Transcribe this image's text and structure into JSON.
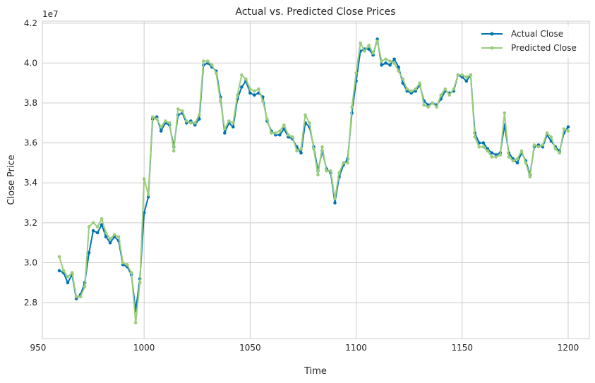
{
  "chart_data": {
    "type": "line",
    "title": "Actual vs. Predicted Close Prices",
    "xlabel": "Time",
    "ylabel": "Close Price",
    "y_offset_label": "1e7",
    "xlim": [
      952,
      1210
    ],
    "ylim": [
      26200000,
      42100000
    ],
    "x_ticks": [
      950,
      1000,
      1050,
      1100,
      1150,
      1200
    ],
    "y_ticks": [
      28000000,
      30000000,
      32000000,
      34000000,
      36000000,
      38000000,
      40000000,
      42000000
    ],
    "x_tick_labels": [
      "950",
      "1000",
      "1050",
      "1100",
      "1150",
      "1200"
    ],
    "y_tick_labels": [
      "2.8",
      "3.0",
      "3.2",
      "3.4",
      "3.6",
      "3.8",
      "4.0",
      "4.2"
    ],
    "grid": true,
    "legend_position": "top-right",
    "series": [
      {
        "name": "Actual Close",
        "color": "#0072b2",
        "x": [
          960,
          962,
          964,
          966,
          968,
          970,
          972,
          974,
          976,
          978,
          980,
          982,
          984,
          986,
          988,
          990,
          992,
          994,
          996,
          998,
          1000,
          1002,
          1004,
          1006,
          1008,
          1010,
          1012,
          1014,
          1016,
          1018,
          1020,
          1022,
          1024,
          1026,
          1028,
          1030,
          1032,
          1034,
          1036,
          1038,
          1040,
          1042,
          1044,
          1046,
          1048,
          1050,
          1052,
          1054,
          1056,
          1058,
          1060,
          1062,
          1064,
          1066,
          1068,
          1070,
          1072,
          1074,
          1076,
          1078,
          1080,
          1082,
          1084,
          1086,
          1088,
          1090,
          1092,
          1094,
          1096,
          1098,
          1100,
          1102,
          1104,
          1106,
          1108,
          1110,
          1112,
          1114,
          1116,
          1118,
          1120,
          1122,
          1124,
          1126,
          1128,
          1130,
          1132,
          1134,
          1136,
          1138,
          1140,
          1142,
          1144,
          1146,
          1148,
          1150,
          1152,
          1154,
          1156,
          1158,
          1160,
          1162,
          1164,
          1166,
          1168,
          1170,
          1172,
          1174,
          1176,
          1178,
          1180,
          1182,
          1184,
          1186,
          1188,
          1190,
          1192,
          1194,
          1196,
          1198,
          1200
        ],
        "y": [
          29600000,
          29500000,
          29000000,
          29400000,
          28200000,
          28400000,
          29000000,
          30500000,
          31600000,
          31500000,
          31900000,
          31300000,
          31000000,
          31300000,
          31100000,
          29900000,
          29800000,
          29400000,
          27600000,
          29200000,
          32500000,
          33300000,
          37200000,
          37300000,
          36600000,
          37000000,
          36900000,
          35800000,
          37400000,
          37500000,
          37000000,
          37100000,
          36900000,
          37200000,
          39900000,
          40000000,
          39800000,
          39600000,
          38300000,
          36500000,
          37000000,
          36800000,
          38200000,
          38800000,
          39100000,
          38500000,
          38400000,
          38500000,
          38300000,
          37100000,
          36600000,
          36400000,
          36400000,
          36700000,
          36300000,
          36200000,
          35800000,
          35500000,
          37000000,
          36800000,
          35800000,
          34600000,
          35600000,
          34700000,
          34500000,
          33000000,
          34300000,
          34900000,
          35200000,
          37500000,
          39100000,
          40600000,
          40700000,
          40700000,
          40400000,
          41200000,
          39900000,
          40000000,
          39900000,
          40200000,
          39800000,
          39000000,
          38600000,
          38500000,
          38600000,
          38900000,
          38100000,
          37900000,
          38000000,
          37900000,
          38200000,
          38600000,
          38500000,
          38600000,
          39400000,
          39300000,
          39100000,
          39400000,
          36500000,
          36000000,
          36000000,
          35700000,
          35500000,
          35400000,
          35500000,
          36900000,
          35500000,
          35200000,
          35000000,
          35500000,
          35100000,
          34400000,
          35800000,
          35900000,
          35800000,
          36400000,
          36100000,
          35800000,
          35600000,
          36500000,
          36800000
        ]
      },
      {
        "name": "Predicted Close",
        "color": "#9acd7a",
        "x": [
          960,
          962,
          964,
          966,
          968,
          970,
          972,
          974,
          976,
          978,
          980,
          982,
          984,
          986,
          988,
          990,
          992,
          994,
          996,
          998,
          1000,
          1002,
          1004,
          1006,
          1008,
          1010,
          1012,
          1014,
          1016,
          1018,
          1020,
          1022,
          1024,
          1026,
          1028,
          1030,
          1032,
          1034,
          1036,
          1038,
          1040,
          1042,
          1044,
          1046,
          1048,
          1050,
          1052,
          1054,
          1056,
          1058,
          1060,
          1062,
          1064,
          1066,
          1068,
          1070,
          1072,
          1074,
          1076,
          1078,
          1080,
          1082,
          1084,
          1086,
          1088,
          1090,
          1092,
          1094,
          1096,
          1098,
          1100,
          1102,
          1104,
          1106,
          1108,
          1110,
          1112,
          1114,
          1116,
          1118,
          1120,
          1122,
          1124,
          1126,
          1128,
          1130,
          1132,
          1134,
          1136,
          1138,
          1140,
          1142,
          1144,
          1146,
          1148,
          1150,
          1152,
          1154,
          1156,
          1158,
          1160,
          1162,
          1164,
          1166,
          1168,
          1170,
          1172,
          1174,
          1176,
          1178,
          1180,
          1182,
          1184,
          1186,
          1188,
          1190,
          1192,
          1194,
          1196,
          1198,
          1200
        ],
        "y": [
          30300000,
          29600000,
          29300000,
          29500000,
          28300000,
          28300000,
          28800000,
          31800000,
          32000000,
          31800000,
          32200000,
          31500000,
          31200000,
          31400000,
          31300000,
          30000000,
          29900000,
          29500000,
          27000000,
          29000000,
          34200000,
          33400000,
          37300000,
          37200000,
          36800000,
          37100000,
          37000000,
          35600000,
          37700000,
          37600000,
          37100000,
          37000000,
          37000000,
          37400000,
          40100000,
          40100000,
          39900000,
          39500000,
          38100000,
          36700000,
          37100000,
          37000000,
          38400000,
          39400000,
          39200000,
          38700000,
          38600000,
          38700000,
          38100000,
          37200000,
          36500000,
          36500000,
          36600000,
          36900000,
          36400000,
          36300000,
          35600000,
          35700000,
          37400000,
          37000000,
          35700000,
          34400000,
          35800000,
          34600000,
          34600000,
          33200000,
          34500000,
          35000000,
          35000000,
          37800000,
          39500000,
          41000000,
          40600000,
          40900000,
          40500000,
          41100000,
          40100000,
          40200000,
          40100000,
          40000000,
          39600000,
          39200000,
          38700000,
          38600000,
          38700000,
          39000000,
          37900000,
          37800000,
          38000000,
          37800000,
          38400000,
          38700000,
          38400000,
          38700000,
          39400000,
          39400000,
          39300000,
          39400000,
          36300000,
          35800000,
          35800000,
          35600000,
          35300000,
          35300000,
          35400000,
          37500000,
          35300000,
          35100000,
          35200000,
          35600000,
          35000000,
          34300000,
          35900000,
          35800000,
          35900000,
          36500000,
          36300000,
          35700000,
          35500000,
          36700000,
          36600000
        ]
      }
    ]
  }
}
